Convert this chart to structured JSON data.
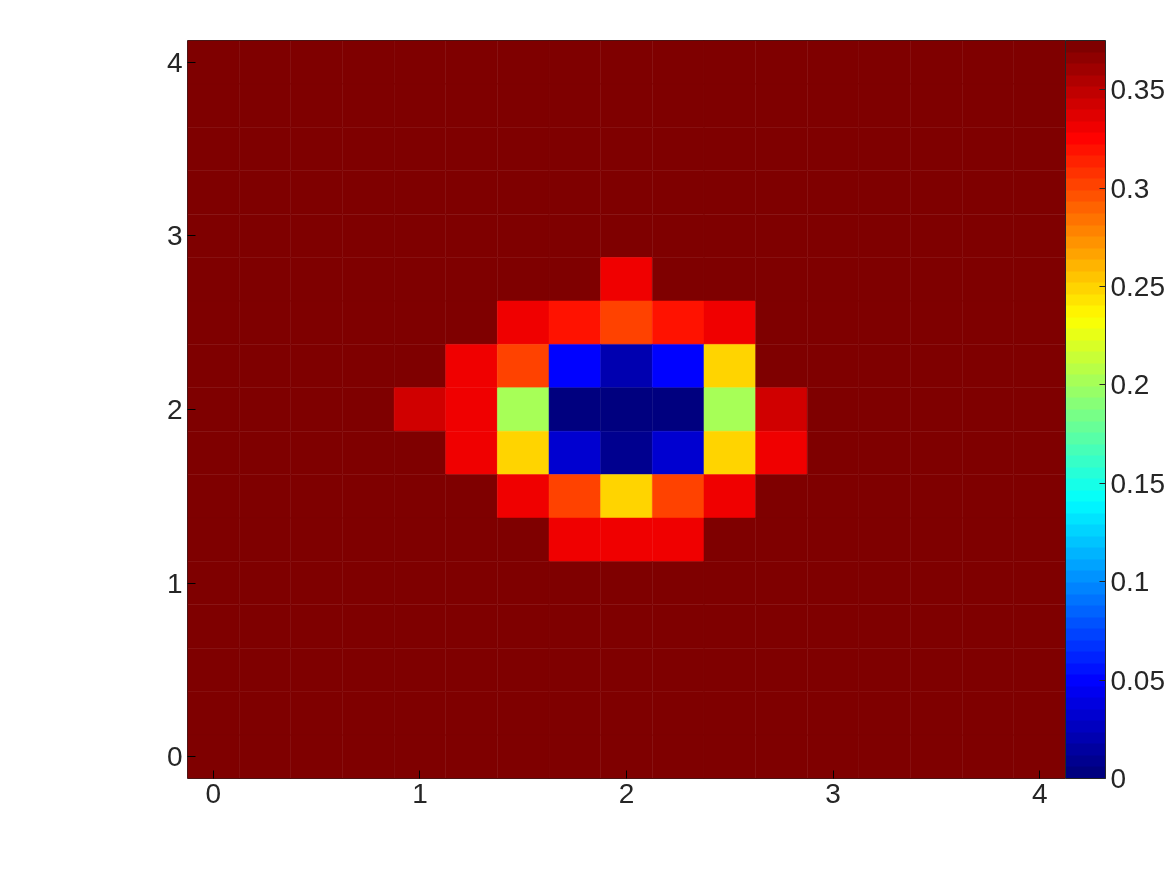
{
  "chart_data": {
    "type": "heatmap",
    "categories": [
      "0",
      null,
      null,
      null,
      "1",
      null,
      null,
      null,
      "2",
      null,
      null,
      null,
      "3",
      null,
      null,
      null,
      "4"
    ],
    "y_categories": [
      "4",
      null,
      null,
      null,
      "3",
      null,
      null,
      null,
      "2",
      null,
      null,
      null,
      "1",
      null,
      null,
      null,
      "0"
    ],
    "clim": [
      0,
      0.375
    ],
    "cticks": [
      0,
      0.05,
      0.1,
      0.15,
      0.2,
      0.25,
      0.3,
      0.35
    ],
    "cells": [
      [
        0.375,
        0.375,
        0.375,
        0.375,
        0.375,
        0.375,
        0.375,
        0.375,
        0.375,
        0.375,
        0.375,
        0.375,
        0.375,
        0.375,
        0.375,
        0.375,
        0.375
      ],
      [
        0.375,
        0.375,
        0.375,
        0.375,
        0.375,
        0.375,
        0.375,
        0.375,
        0.375,
        0.375,
        0.375,
        0.375,
        0.375,
        0.375,
        0.375,
        0.375,
        0.375
      ],
      [
        0.375,
        0.375,
        0.375,
        0.375,
        0.375,
        0.375,
        0.375,
        0.375,
        0.375,
        0.375,
        0.375,
        0.375,
        0.375,
        0.375,
        0.375,
        0.375,
        0.375
      ],
      [
        0.375,
        0.375,
        0.375,
        0.375,
        0.375,
        0.375,
        0.375,
        0.375,
        0.375,
        0.375,
        0.375,
        0.375,
        0.375,
        0.375,
        0.375,
        0.375,
        0.375
      ],
      [
        0.375,
        0.375,
        0.375,
        0.375,
        0.375,
        0.375,
        0.375,
        0.375,
        0.375,
        0.375,
        0.375,
        0.375,
        0.375,
        0.375,
        0.375,
        0.375,
        0.375
      ],
      [
        0.375,
        0.375,
        0.375,
        0.375,
        0.375,
        0.375,
        0.375,
        0.375,
        0.33,
        0.375,
        0.375,
        0.375,
        0.375,
        0.375,
        0.375,
        0.375,
        0.375
      ],
      [
        0.375,
        0.375,
        0.375,
        0.375,
        0.375,
        0.375,
        0.33,
        0.32,
        0.3,
        0.32,
        0.33,
        0.375,
        0.375,
        0.375,
        0.375,
        0.375,
        0.375
      ],
      [
        0.375,
        0.375,
        0.375,
        0.375,
        0.375,
        0.33,
        0.3,
        0.05,
        0.02,
        0.05,
        0.25,
        0.375,
        0.375,
        0.375,
        0.375,
        0.375,
        0.375
      ],
      [
        0.375,
        0.375,
        0.375,
        0.375,
        0.34,
        0.33,
        0.2,
        0,
        0,
        0,
        0.2,
        0.34,
        0.375,
        0.375,
        0.375,
        0.375,
        0.375
      ],
      [
        0.375,
        0.375,
        0.375,
        0.375,
        0.375,
        0.33,
        0.25,
        0.03,
        0.01,
        0.03,
        0.25,
        0.33,
        0.375,
        0.375,
        0.375,
        0.375,
        0.375
      ],
      [
        0.375,
        0.375,
        0.375,
        0.375,
        0.375,
        0.375,
        0.33,
        0.3,
        0.25,
        0.3,
        0.33,
        0.375,
        0.375,
        0.375,
        0.375,
        0.375,
        0.375
      ],
      [
        0.375,
        0.375,
        0.375,
        0.375,
        0.375,
        0.375,
        0.375,
        0.33,
        0.33,
        0.33,
        0.375,
        0.375,
        0.375,
        0.375,
        0.375,
        0.375,
        0.375
      ],
      [
        0.375,
        0.375,
        0.375,
        0.375,
        0.375,
        0.375,
        0.375,
        0.375,
        0.375,
        0.375,
        0.375,
        0.375,
        0.375,
        0.375,
        0.375,
        0.375,
        0.375
      ],
      [
        0.375,
        0.375,
        0.375,
        0.375,
        0.375,
        0.375,
        0.375,
        0.375,
        0.375,
        0.375,
        0.375,
        0.375,
        0.375,
        0.375,
        0.375,
        0.375,
        0.375
      ],
      [
        0.375,
        0.375,
        0.375,
        0.375,
        0.375,
        0.375,
        0.375,
        0.375,
        0.375,
        0.375,
        0.375,
        0.375,
        0.375,
        0.375,
        0.375,
        0.375,
        0.375
      ],
      [
        0.375,
        0.375,
        0.375,
        0.375,
        0.375,
        0.375,
        0.375,
        0.375,
        0.375,
        0.375,
        0.375,
        0.375,
        0.375,
        0.375,
        0.375,
        0.375,
        0.375
      ],
      [
        0.375,
        0.375,
        0.375,
        0.375,
        0.375,
        0.375,
        0.375,
        0.375,
        0.375,
        0.375,
        0.375,
        0.375,
        0.375,
        0.375,
        0.375,
        0.375,
        0.375
      ]
    ]
  }
}
